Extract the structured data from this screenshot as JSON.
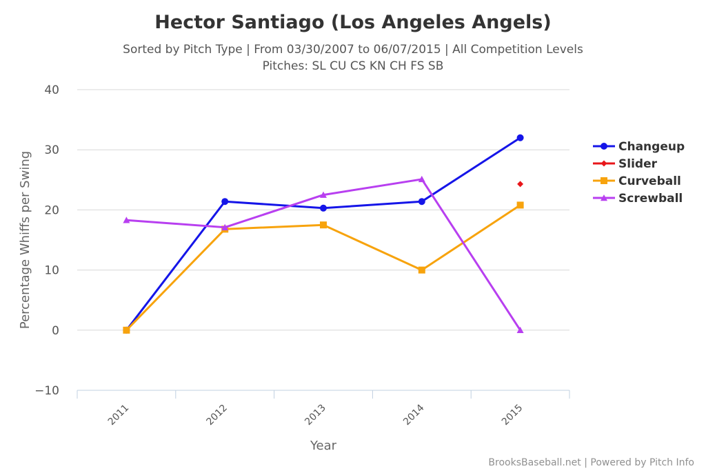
{
  "chart_data": {
    "type": "line",
    "title": "Hector Santiago (Los Angeles Angels)",
    "subtitle_line1": "Sorted by Pitch Type | From 03/30/2007 to 06/07/2015 | All Competition Levels",
    "subtitle_line2": "Pitches: SL CU CS KN CH FS SB",
    "xlabel": "Year",
    "ylabel": "Percentage Whiffs per Swing",
    "categories": [
      "2011",
      "2012",
      "2013",
      "2014",
      "2015"
    ],
    "ylim": [
      -10,
      40
    ],
    "yticks": [
      "−10",
      "0",
      "10",
      "20",
      "30",
      "40"
    ],
    "ytick_values": [
      -10,
      0,
      10,
      20,
      30,
      40
    ],
    "grid": true,
    "legend_position": "right",
    "series": [
      {
        "name": "Changeup",
        "color": "#1515e8",
        "marker": "circle",
        "values": [
          0,
          21.4,
          20.3,
          21.4,
          32.0
        ]
      },
      {
        "name": "Slider",
        "color": "#e8161a",
        "marker": "diamond",
        "values": [
          null,
          null,
          null,
          null,
          24.3
        ]
      },
      {
        "name": "Curveball",
        "color": "#f7a30d",
        "marker": "square",
        "values": [
          0,
          16.8,
          17.5,
          10.0,
          20.8
        ]
      },
      {
        "name": "Screwball",
        "color": "#b83ff0",
        "marker": "triangle",
        "values": [
          18.3,
          17.1,
          22.5,
          25.1,
          0
        ]
      }
    ],
    "credits": "BrooksBaseball.net | Powered by Pitch Info"
  }
}
